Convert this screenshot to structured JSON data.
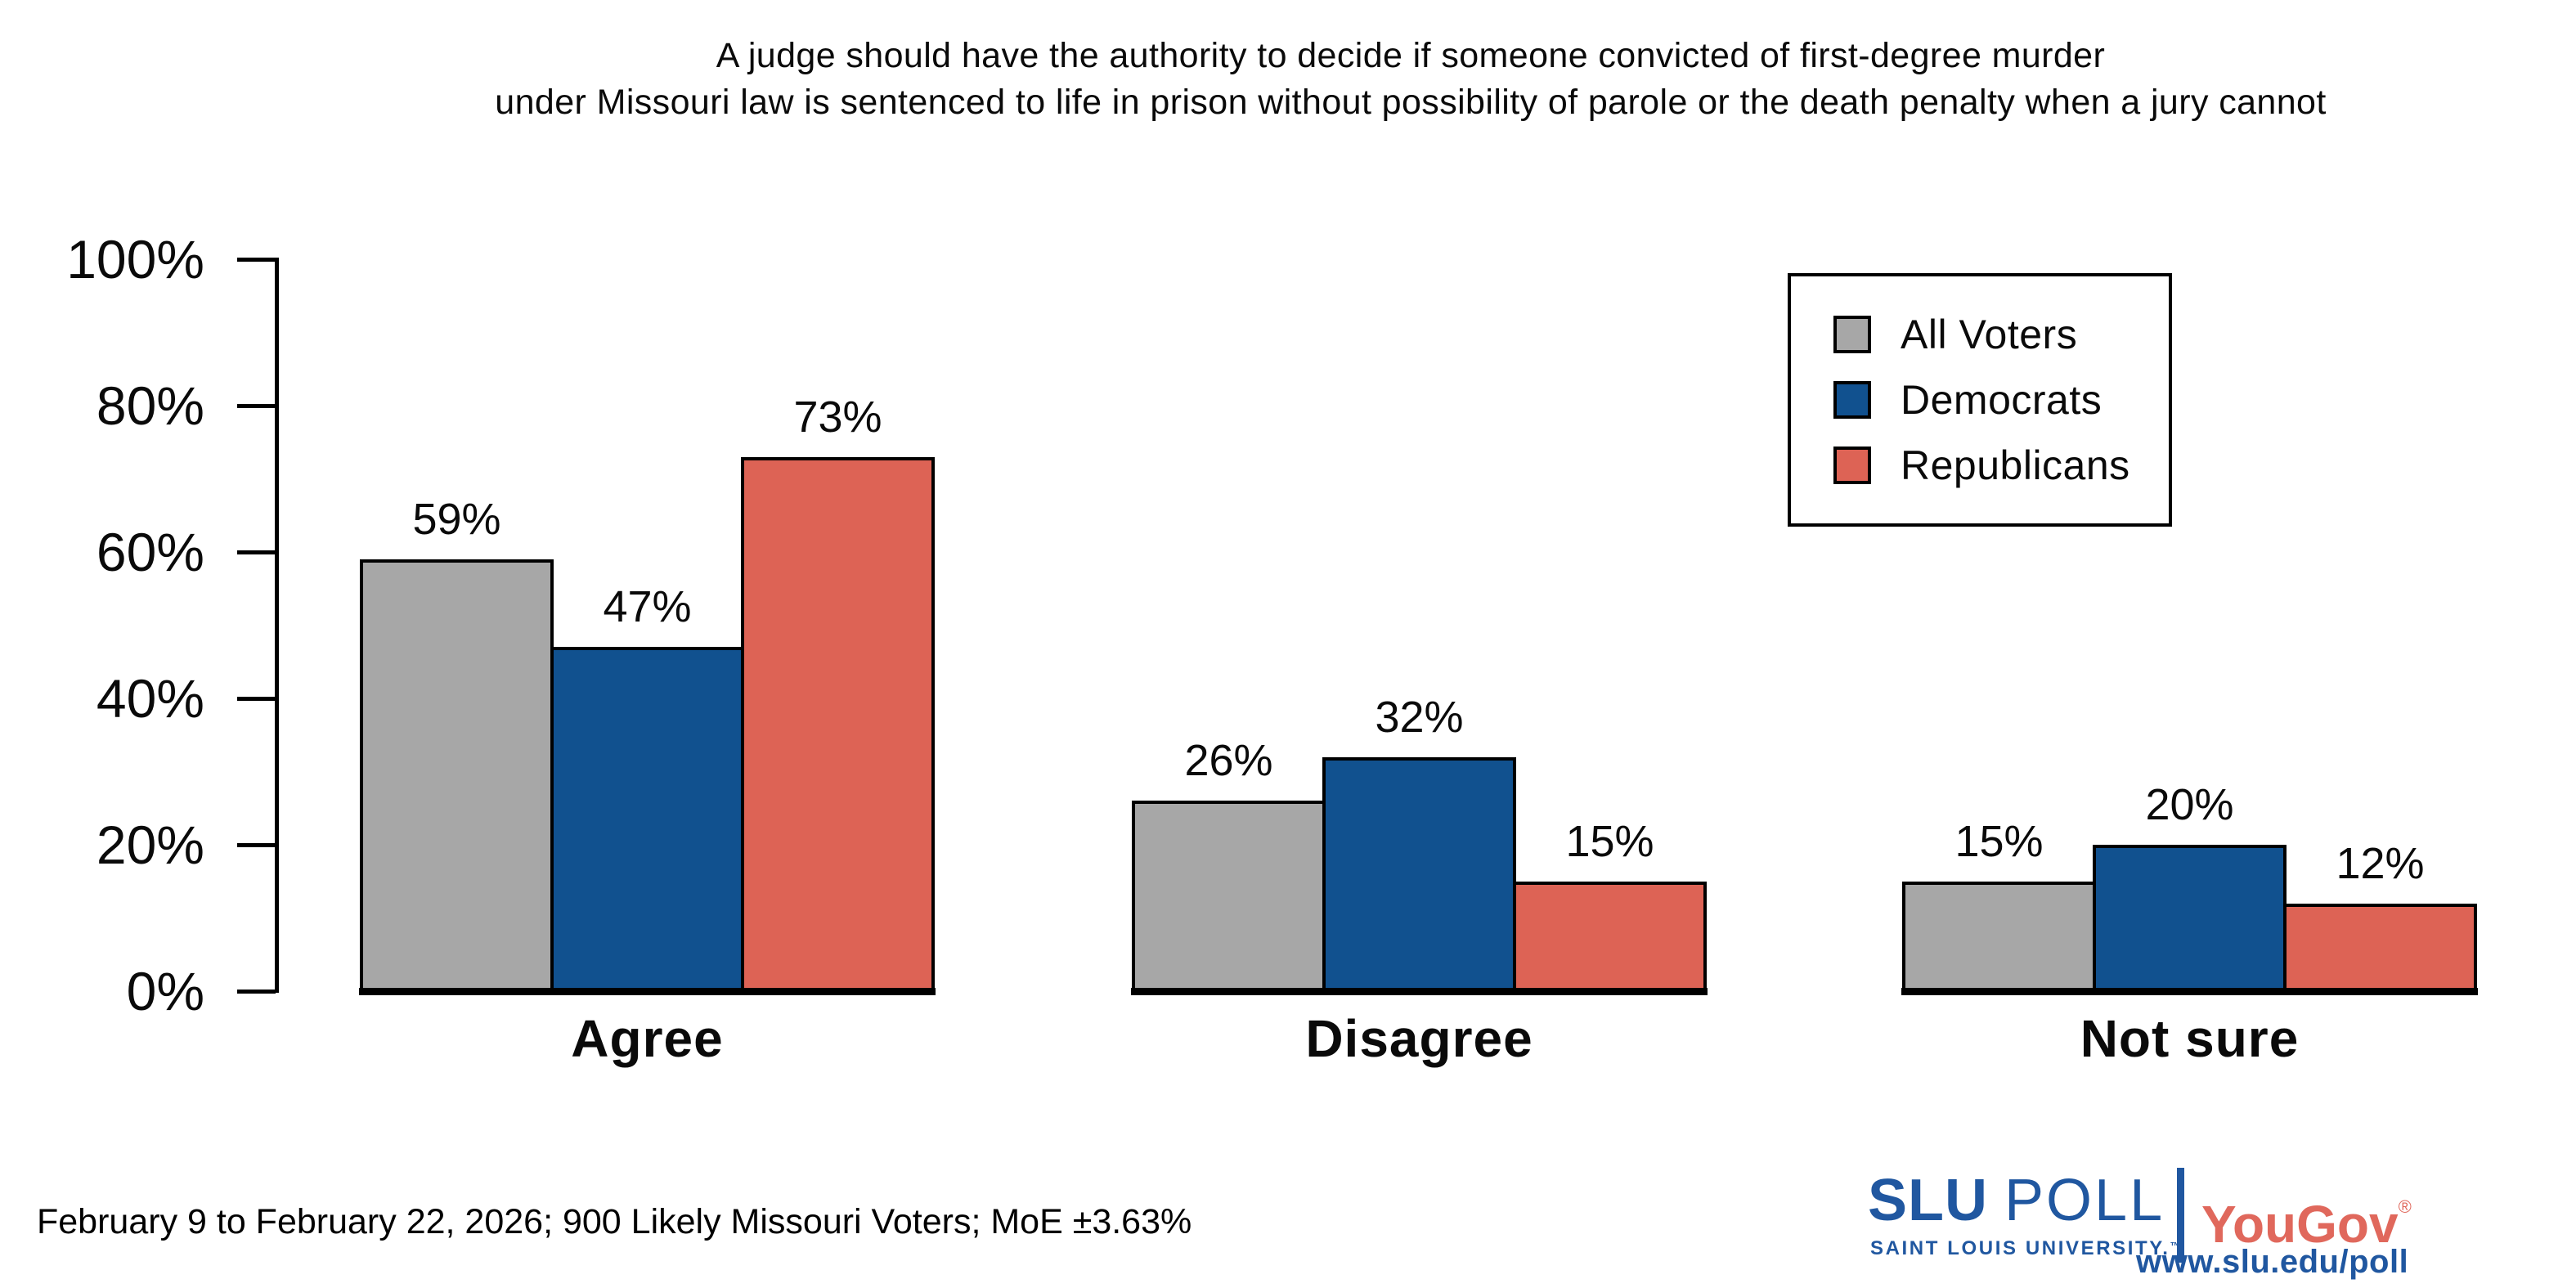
{
  "title": {
    "line1": "A judge should have the authority to decide if someone convicted of first-degree murder",
    "line2": "under Missouri law is sentenced to life in prison without possibility of parole or the death penalty when a jury cannot"
  },
  "chart_data": {
    "type": "bar",
    "categories": [
      "Agree",
      "Disagree",
      "Not sure"
    ],
    "series": [
      {
        "name": "All Voters",
        "color": "#a7a7a7",
        "values": [
          59,
          26,
          15
        ]
      },
      {
        "name": "Democrats",
        "color": "#11518f",
        "values": [
          47,
          32,
          20
        ]
      },
      {
        "name": "Republicans",
        "color": "#dd6355",
        "values": [
          73,
          15,
          12
        ]
      }
    ],
    "value_suffix": "%",
    "yticks": [
      "0%",
      "20%",
      "40%",
      "60%",
      "80%",
      "100%"
    ],
    "ylim": [
      0,
      100
    ],
    "xlabel": "",
    "ylabel": "",
    "grid": false,
    "legend_position": "top-right",
    "bar_outline_color": "#000000"
  },
  "footer": {
    "note": "February 9 to February 22, 2026; 900 Likely Missouri Voters; MoE ±3.63%",
    "logo": {
      "slu": "SLU",
      "poll": "POLL",
      "university": "SAINT LOUIS UNIVERSITY.",
      "trademark": "™",
      "separator": "",
      "yougov": "YouGov",
      "registered": "®",
      "url": "www.slu.edu/poll"
    },
    "colors": {
      "slu_blue": "#2057a0",
      "yougov_red": "#e0685c"
    }
  }
}
